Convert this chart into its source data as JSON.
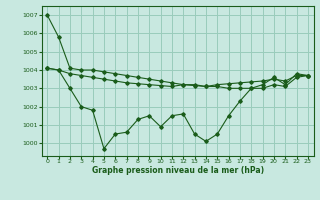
{
  "title": "Graphe pression niveau de la mer (hPa)",
  "bg_color": "#c8e8e0",
  "grid_color": "#99ccbb",
  "line_color": "#1a5c1a",
  "xlim": [
    -0.5,
    23.5
  ],
  "ylim": [
    999.3,
    1007.5
  ],
  "yticks": [
    1000,
    1001,
    1002,
    1003,
    1004,
    1005,
    1006,
    1007
  ],
  "xticks": [
    0,
    1,
    2,
    3,
    4,
    5,
    6,
    7,
    8,
    9,
    10,
    11,
    12,
    13,
    14,
    15,
    16,
    17,
    18,
    19,
    20,
    21,
    22,
    23
  ],
  "series": [
    [
      1007.0,
      1005.8,
      1004.1,
      1004.0,
      1004.0,
      1003.9,
      1003.8,
      1003.7,
      1003.6,
      1003.5,
      1003.4,
      1003.3,
      1003.2,
      1003.2,
      1003.1,
      1003.1,
      1003.0,
      1003.0,
      1003.0,
      1003.0,
      1003.2,
      1003.1,
      1003.6,
      1003.7
    ],
    [
      1004.1,
      1004.0,
      1003.0,
      1002.0,
      1001.8,
      999.7,
      1000.5,
      1000.6,
      1001.3,
      1001.5,
      1000.9,
      1001.5,
      1001.6,
      1000.5,
      1000.1,
      1000.5,
      1001.5,
      1002.3,
      1003.0,
      1003.2,
      1003.6,
      1003.2,
      1003.8,
      1003.7
    ],
    [
      1004.1,
      1004.0,
      1003.8,
      1003.7,
      1003.6,
      1003.5,
      1003.4,
      1003.3,
      1003.25,
      1003.2,
      1003.15,
      1003.1,
      1003.2,
      1003.15,
      1003.1,
      1003.2,
      1003.25,
      1003.3,
      1003.35,
      1003.4,
      1003.5,
      1003.4,
      1003.7,
      1003.7
    ]
  ]
}
